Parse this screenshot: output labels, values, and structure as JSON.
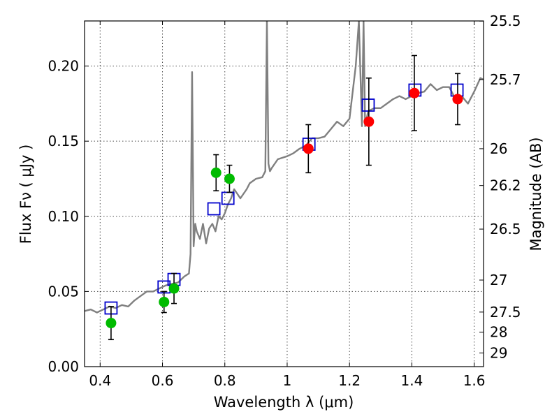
{
  "chart_data": {
    "type": "scatter",
    "xlabel": "Wavelength  λ (μm)",
    "ylabel": "Flux  Fν  ( μJy )",
    "ylabel_right": "Magnitude (AB)",
    "xlim": [
      0.35,
      1.63
    ],
    "ylim": [
      0.0,
      0.23
    ],
    "grid": true,
    "x_ticks": [
      0.4,
      0.6,
      0.8,
      1.0,
      1.2,
      1.4,
      1.6
    ],
    "x_tick_labels": [
      "0.4",
      "0.6",
      "0.8",
      "1",
      "1.2",
      "1.4",
      "1.6"
    ],
    "y_ticks": [
      0.0,
      0.05,
      0.1,
      0.15,
      0.2
    ],
    "y_tick_labels": [
      "0.00",
      "0.05",
      "0.10",
      "0.15",
      "0.20"
    ],
    "mag_ticks": [
      {
        "label": "25.5",
        "flux": 0.2299
      },
      {
        "label": "25.7",
        "flux": 0.191
      },
      {
        "label": "26",
        "flux": 0.145
      },
      {
        "label": "26.2",
        "flux": 0.1205
      },
      {
        "label": "26.5",
        "flux": 0.0915
      },
      {
        "label": "27",
        "flux": 0.0576
      },
      {
        "label": "27.5",
        "flux": 0.0363
      },
      {
        "label": "28",
        "flux": 0.0229
      },
      {
        "label": "29",
        "flux": 0.0091
      }
    ],
    "colors": {
      "spectrum": "#808080",
      "observed_optical": "#00bb00",
      "observed_nir": "#ff0000",
      "model_box": "#0000cc",
      "errorbar": "#000000"
    },
    "series": [
      {
        "style": "spectrum-line",
        "x": [
          0.35,
          0.37,
          0.39,
          0.41,
          0.43,
          0.45,
          0.47,
          0.49,
          0.51,
          0.53,
          0.55,
          0.57,
          0.59,
          0.61,
          0.63,
          0.65,
          0.67,
          0.685,
          0.69,
          0.695,
          0.7,
          0.705,
          0.71,
          0.72,
          0.73,
          0.74,
          0.75,
          0.76,
          0.77,
          0.78,
          0.79,
          0.8,
          0.81,
          0.82,
          0.83,
          0.84,
          0.85,
          0.86,
          0.87,
          0.88,
          0.9,
          0.92,
          0.93,
          0.935,
          0.94,
          0.945,
          0.95,
          0.97,
          1.0,
          1.02,
          1.04,
          1.06,
          1.08,
          1.1,
          1.12,
          1.14,
          1.16,
          1.18,
          1.2,
          1.22,
          1.23,
          1.24,
          1.245,
          1.25,
          1.26,
          1.28,
          1.3,
          1.32,
          1.34,
          1.36,
          1.38,
          1.4,
          1.42,
          1.44,
          1.46,
          1.48,
          1.5,
          1.52,
          1.54,
          1.56,
          1.58,
          1.6,
          1.62,
          1.63
        ],
        "y": [
          0.037,
          0.038,
          0.036,
          0.038,
          0.04,
          0.039,
          0.041,
          0.04,
          0.044,
          0.047,
          0.05,
          0.05,
          0.052,
          0.054,
          0.055,
          0.056,
          0.06,
          0.062,
          0.075,
          0.196,
          0.08,
          0.095,
          0.09,
          0.085,
          0.095,
          0.082,
          0.092,
          0.095,
          0.09,
          0.1,
          0.098,
          0.102,
          0.108,
          0.112,
          0.118,
          0.115,
          0.112,
          0.115,
          0.118,
          0.122,
          0.125,
          0.126,
          0.13,
          0.23,
          0.135,
          0.13,
          0.132,
          0.138,
          0.14,
          0.142,
          0.145,
          0.147,
          0.152,
          0.152,
          0.153,
          0.158,
          0.163,
          0.16,
          0.165,
          0.2,
          0.23,
          0.16,
          0.23,
          0.16,
          0.17,
          0.172,
          0.172,
          0.175,
          0.178,
          0.18,
          0.178,
          0.18,
          0.182,
          0.183,
          0.188,
          0.184,
          0.186,
          0.186,
          0.178,
          0.18,
          0.175,
          0.183,
          0.192,
          0.191
        ]
      },
      {
        "style": "model-boxes",
        "x": [
          0.435,
          0.605,
          0.637,
          0.765,
          0.81,
          1.07,
          1.26,
          1.41,
          1.545
        ],
        "y": [
          0.039,
          0.053,
          0.058,
          0.105,
          0.112,
          0.148,
          0.174,
          0.184,
          0.184
        ]
      },
      {
        "style": "observed-optical",
        "x": [
          0.435,
          0.605,
          0.637,
          0.772,
          0.815
        ],
        "y": [
          0.029,
          0.043,
          0.052,
          0.129,
          0.125
        ],
        "err": [
          0.011,
          0.007,
          0.01,
          0.012,
          0.009
        ]
      },
      {
        "style": "observed-nir",
        "x": [
          1.068,
          1.262,
          1.408,
          1.547
        ],
        "y": [
          0.145,
          0.163,
          0.182,
          0.178
        ],
        "err": [
          0.016,
          0.029,
          0.025,
          0.017
        ]
      }
    ]
  }
}
